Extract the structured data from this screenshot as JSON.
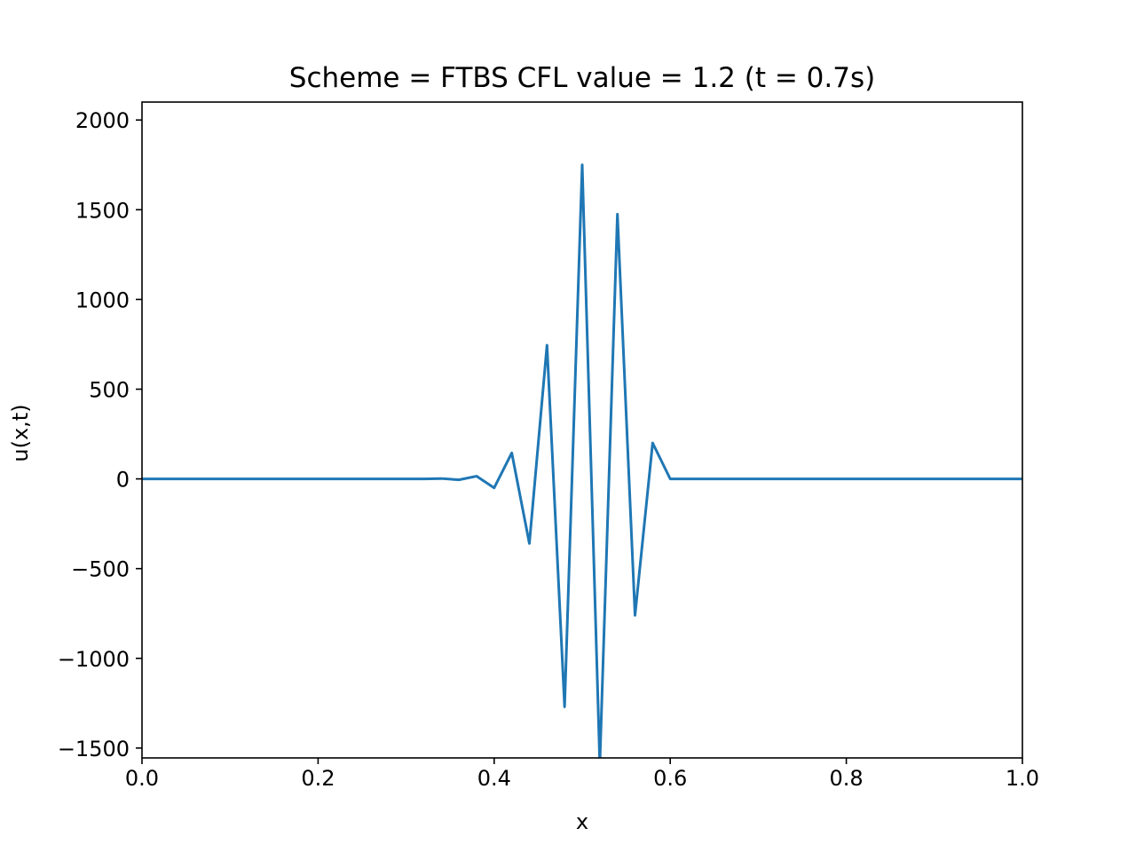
{
  "chart_data": {
    "type": "line",
    "title": "Scheme = FTBS CFL value = 1.2 (t = 0.7s)",
    "xlabel": "x",
    "ylabel": "u(x,t)",
    "xlim": [
      0.0,
      1.0
    ],
    "ylim": [
      -1555,
      2100
    ],
    "xticks": [
      0.0,
      0.2,
      0.4,
      0.6,
      0.8,
      1.0
    ],
    "xtick_labels": [
      "0.0",
      "0.2",
      "0.4",
      "0.6",
      "0.8",
      "1.0"
    ],
    "yticks": [
      -1500,
      -1000,
      -500,
      0,
      500,
      1000,
      1500,
      2000
    ],
    "ytick_labels": [
      "−1500",
      "−1000",
      "−500",
      "0",
      "500",
      "1000",
      "1500",
      "2000"
    ],
    "grid": false,
    "color": "#1f77b4",
    "series": [
      {
        "x": [
          0.0,
          0.02,
          0.04,
          0.06,
          0.08,
          0.1,
          0.12,
          0.14,
          0.16,
          0.18,
          0.2,
          0.22,
          0.24,
          0.26,
          0.28,
          0.3,
          0.32,
          0.34,
          0.36,
          0.38,
          0.4,
          0.42,
          0.44,
          0.46,
          0.48,
          0.5,
          0.52,
          0.54,
          0.56,
          0.58,
          0.6,
          0.62,
          0.64,
          0.66,
          0.68,
          0.7,
          0.72,
          0.74,
          0.76,
          0.78,
          0.8,
          0.82,
          0.84,
          0.86,
          0.88,
          0.9,
          0.92,
          0.94,
          0.96,
          0.98,
          1.0
        ],
        "values": [
          0,
          0,
          0,
          0,
          0,
          0,
          0,
          0,
          0,
          0,
          0,
          0,
          0,
          0,
          0,
          0,
          0,
          2,
          -5,
          15,
          -50,
          145,
          -360,
          745,
          -1270,
          1750,
          -1590,
          1475,
          -760,
          200,
          0,
          0,
          0,
          0,
          0,
          0,
          0,
          0,
          0,
          0,
          0,
          0,
          0,
          0,
          0,
          0,
          0,
          0,
          0,
          0,
          0
        ]
      }
    ]
  }
}
